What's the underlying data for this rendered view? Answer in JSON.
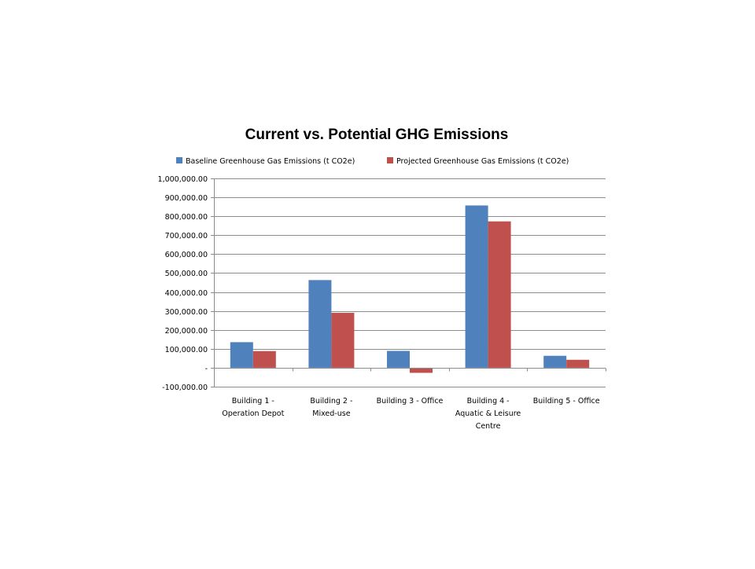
{
  "chart_data": {
    "type": "bar",
    "title": "Current vs. Potential GHG Emissions",
    "xlabel": "",
    "ylabel": "",
    "categories": [
      [
        "Building 1 -",
        "Operation Depot"
      ],
      [
        "Building 2 -",
        "Mixed-use"
      ],
      [
        "Building 3 - Office"
      ],
      [
        "Building 4 -",
        "Aquatic & Leisure",
        "Centre"
      ],
      [
        "Building 5 - Office"
      ]
    ],
    "series": [
      {
        "name": "Baseline Greenhouse Gas Emissions (t CO2e)",
        "color": "#4f81bd",
        "values": [
          135000,
          463000,
          89000,
          857000,
          63000
        ]
      },
      {
        "name": "Projected Greenhouse Gas Emissions (t CO2e)",
        "color": "#c0504d",
        "values": [
          88000,
          290000,
          -27000,
          773000,
          42000
        ]
      }
    ],
    "ylim": [
      -100000,
      1000000
    ],
    "yticks": [
      -100000,
      0,
      100000,
      200000,
      300000,
      400000,
      500000,
      600000,
      700000,
      800000,
      900000,
      1000000
    ],
    "ytick_labels": [
      "-100,000.00",
      "-",
      "100,000.00",
      "200,000.00",
      "300,000.00",
      "400,000.00",
      "500,000.00",
      "600,000.00",
      "700,000.00",
      "800,000.00",
      "900,000.00",
      "1,000,000.00"
    ],
    "grid": true,
    "legend_position": "top"
  }
}
